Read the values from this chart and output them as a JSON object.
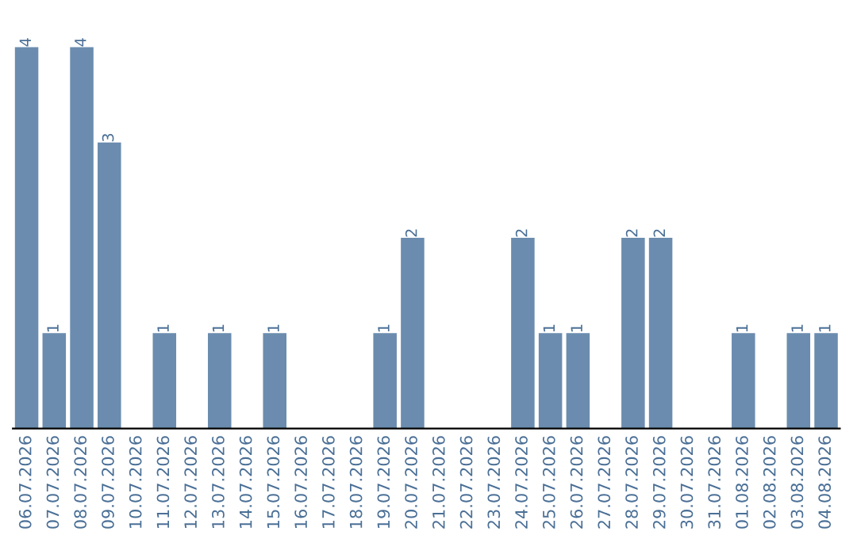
{
  "chart_data": {
    "type": "bar",
    "categories": [
      "06.07.2026",
      "07.07.2026",
      "08.07.2026",
      "09.07.2026",
      "10.07.2026",
      "11.07.2026",
      "12.07.2026",
      "13.07.2026",
      "14.07.2026",
      "15.07.2026",
      "16.07.2026",
      "17.07.2026",
      "18.07.2026",
      "19.07.2026",
      "20.07.2026",
      "21.07.2026",
      "22.07.2026",
      "23.07.2026",
      "24.07.2026",
      "25.07.2026",
      "26.07.2026",
      "27.07.2026",
      "28.07.2026",
      "29.07.2026",
      "30.07.2026",
      "31.07.2026",
      "01.08.2026",
      "02.08.2026",
      "03.08.2026",
      "04.08.2026"
    ],
    "values": [
      4,
      1,
      4,
      3,
      0,
      1,
      0,
      1,
      0,
      1,
      0,
      0,
      0,
      1,
      2,
      0,
      0,
      0,
      2,
      1,
      1,
      0,
      2,
      2,
      0,
      0,
      1,
      0,
      1,
      1
    ],
    "value_labels": [
      "4",
      "1",
      "4",
      "3",
      null,
      "1",
      null,
      "1",
      null,
      "1",
      null,
      null,
      null,
      "1",
      "2",
      null,
      null,
      null,
      "2",
      "1",
      "1",
      null,
      "2",
      "2",
      null,
      null,
      "1",
      null,
      "1",
      "1"
    ],
    "color": "#6b8cae",
    "grid": false,
    "tick_labels": "x"
  }
}
